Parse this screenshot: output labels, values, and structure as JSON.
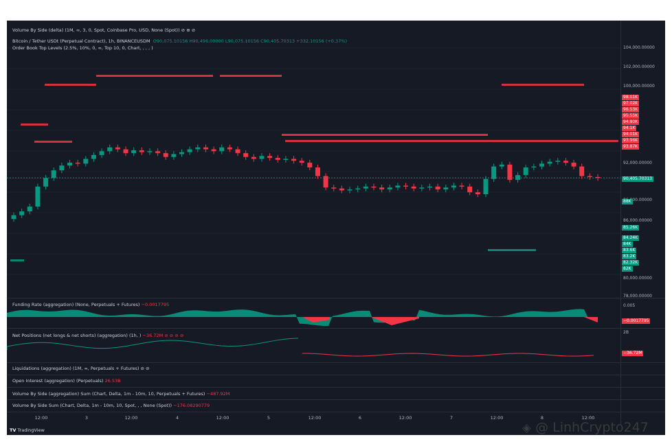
{
  "indicators": {
    "volume_by_side_top": "Volume By Side (delta) (1M, ∞, 3, 0, Spot, Coinbase Pro, USD, None (Spot))  ⊘  ⊕  ⊘",
    "symbol": "Bitcoin / Tether USDt (Perpetual Contract), 1h, BINANCEUSDM",
    "ohlc": "O90,075.10156  H90,496.00000  L90,075.10156  C90,405.70313  +332.10156 (+0.37%)",
    "order_book": "Order Book Top Levels (2.5%, 10%, 0, ∞, Top 10, 0, Chart, , , , )",
    "funding_rate": "Funding Rate (aggregation) (None, Perpetuals + Futures)",
    "funding_rate_value": "−0.0017795",
    "net_positions": "Net Positions (net longs & net shorts) (aggregation) (1h, )",
    "net_positions_value": "−36.72M  ⊘  ⊘  ⊘  ⊘",
    "liquidations": "Liquidations (aggregation) (1M, ∞, Perpetuals + Futures)  ⊘  ⊘",
    "open_interest": "Open Interest (aggregation) (Perpetuals)",
    "open_interest_value": "26.53B",
    "volume_sum_agg": "Volume By Side (aggregation) Sum (Chart, Delta, 1m - 10m, 10, Perpetuals + Futures)",
    "volume_sum_agg_value": "−487.92M",
    "volume_sum_spot": "Volume By Side Sum (Chart, Delta, 1m - 10m, 10, Spot, , , None (Spot))",
    "volume_sum_spot_value": "−176.08290779"
  },
  "price_axis": {
    "ticks": [
      "104,000.00000",
      "102,000.00000",
      "100,000.00000",
      "92,000.00000",
      "90,000.00000",
      "86,000.00000",
      "80,000.00000",
      "78,000.00000"
    ],
    "current_price": "90,405.70313",
    "ask_levels": [
      "98.01K",
      "97.02K",
      "96.53K",
      "95.55K",
      "94.80K",
      "94.1K",
      "94.01K",
      "93.96K",
      "93.87K"
    ],
    "bid_levels": [
      "88K",
      "85.26K",
      "84.24K",
      "84K",
      "83.6K",
      "83.2K",
      "82.32K",
      "82K"
    ]
  },
  "funding_axis": {
    "tick": "0.005",
    "value": "−0.0017795"
  },
  "net_axis": {
    "tick": "2B",
    "value": "−36.72M"
  },
  "time_axis": [
    "12:00",
    "3",
    "12:00",
    "4",
    "12:00",
    "5",
    "12:00",
    "6",
    "12:00",
    "7",
    "12:00",
    "8",
    "12:00"
  ],
  "branding": {
    "logo": "TradingView"
  },
  "watermark": {
    "text": "@ LinhCrypto247"
  },
  "colors": {
    "up": "#089981",
    "down": "#f23645",
    "bg": "#161a25",
    "line": "#089981"
  },
  "chart_data": {
    "type": "candlestick",
    "interval": "1h",
    "ylim": [
      78000,
      104000
    ],
    "close_series": [
      86500,
      86900,
      87400,
      89500,
      90400,
      91200,
      91700,
      92000,
      91900,
      92400,
      92800,
      93200,
      93600,
      93400,
      93000,
      93300,
      93100,
      93200,
      93000,
      92600,
      92900,
      93100,
      93400,
      93600,
      93400,
      93200,
      93600,
      93400,
      93000,
      92600,
      92400,
      92700,
      92500,
      92300,
      92400,
      92200,
      92000,
      91500,
      90600,
      89400,
      89300,
      89100,
      89200,
      89300,
      89500,
      89400,
      89200,
      89400,
      89600,
      89500,
      89300,
      89400,
      89500,
      89200,
      89400,
      89600,
      89500,
      88900,
      88700,
      90300,
      91600,
      91800,
      90200,
      90700,
      91500,
      91600,
      91900,
      92100,
      92200,
      92000,
      91600,
      90600,
      90500,
      90405
    ]
  }
}
